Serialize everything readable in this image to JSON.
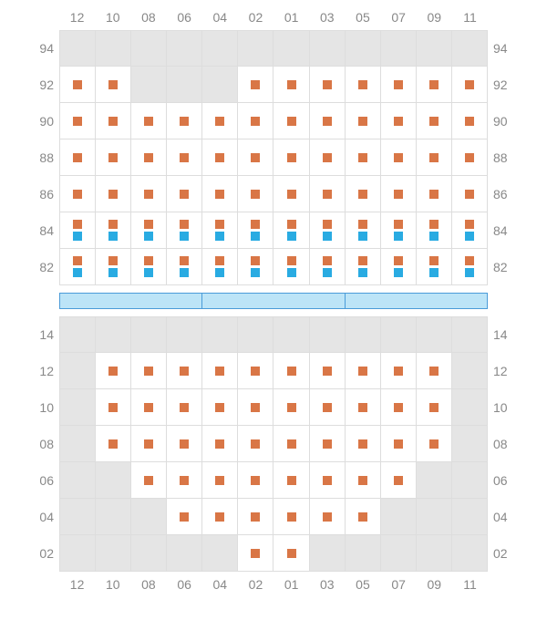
{
  "chart": {
    "type": "seating-map",
    "colors": {
      "orange": "#d97646",
      "blue": "#29abe2",
      "cell_bg": "#ffffff",
      "empty_bg": "#e5e5e5",
      "border": "#dddddd",
      "label": "#888888",
      "stage_fill": "#bce4f7",
      "stage_border": "#4a9bd8"
    },
    "columns": [
      "12",
      "10",
      "08",
      "06",
      "04",
      "02",
      "01",
      "03",
      "05",
      "07",
      "09",
      "11"
    ],
    "upper": {
      "row_labels": [
        "94",
        "92",
        "90",
        "88",
        "86",
        "84",
        "82"
      ],
      "rows": [
        {
          "label": "94",
          "cells": [
            {
              "t": "e"
            },
            {
              "t": "e"
            },
            {
              "t": "e"
            },
            {
              "t": "e"
            },
            {
              "t": "e"
            },
            {
              "t": "e"
            },
            {
              "t": "e"
            },
            {
              "t": "e"
            },
            {
              "t": "e"
            },
            {
              "t": "e"
            },
            {
              "t": "e"
            },
            {
              "t": "e"
            }
          ]
        },
        {
          "label": "92",
          "cells": [
            {
              "t": "o"
            },
            {
              "t": "o"
            },
            {
              "t": "e"
            },
            {
              "t": "e"
            },
            {
              "t": "e"
            },
            {
              "t": "o"
            },
            {
              "t": "o"
            },
            {
              "t": "o"
            },
            {
              "t": "o"
            },
            {
              "t": "o"
            },
            {
              "t": "o"
            },
            {
              "t": "o"
            }
          ]
        },
        {
          "label": "90",
          "cells": [
            {
              "t": "o"
            },
            {
              "t": "o"
            },
            {
              "t": "o"
            },
            {
              "t": "o"
            },
            {
              "t": "o"
            },
            {
              "t": "o"
            },
            {
              "t": "o"
            },
            {
              "t": "o"
            },
            {
              "t": "o"
            },
            {
              "t": "o"
            },
            {
              "t": "o"
            },
            {
              "t": "o"
            }
          ]
        },
        {
          "label": "88",
          "cells": [
            {
              "t": "o"
            },
            {
              "t": "o"
            },
            {
              "t": "o"
            },
            {
              "t": "o"
            },
            {
              "t": "o"
            },
            {
              "t": "o"
            },
            {
              "t": "o"
            },
            {
              "t": "o"
            },
            {
              "t": "o"
            },
            {
              "t": "o"
            },
            {
              "t": "o"
            },
            {
              "t": "o"
            }
          ]
        },
        {
          "label": "86",
          "cells": [
            {
              "t": "o"
            },
            {
              "t": "o"
            },
            {
              "t": "o"
            },
            {
              "t": "o"
            },
            {
              "t": "o"
            },
            {
              "t": "o"
            },
            {
              "t": "o"
            },
            {
              "t": "o"
            },
            {
              "t": "o"
            },
            {
              "t": "o"
            },
            {
              "t": "o"
            },
            {
              "t": "o"
            }
          ]
        },
        {
          "label": "84",
          "cells": [
            {
              "t": "ob"
            },
            {
              "t": "ob"
            },
            {
              "t": "ob"
            },
            {
              "t": "ob"
            },
            {
              "t": "ob"
            },
            {
              "t": "ob"
            },
            {
              "t": "ob"
            },
            {
              "t": "ob"
            },
            {
              "t": "ob"
            },
            {
              "t": "ob"
            },
            {
              "t": "ob"
            },
            {
              "t": "ob"
            }
          ]
        },
        {
          "label": "82",
          "cells": [
            {
              "t": "ob"
            },
            {
              "t": "ob"
            },
            {
              "t": "ob"
            },
            {
              "t": "ob"
            },
            {
              "t": "ob"
            },
            {
              "t": "ob"
            },
            {
              "t": "ob"
            },
            {
              "t": "ob"
            },
            {
              "t": "ob"
            },
            {
              "t": "ob"
            },
            {
              "t": "ob"
            },
            {
              "t": "ob"
            }
          ]
        }
      ]
    },
    "stage_segments": 3,
    "lower": {
      "row_labels": [
        "14",
        "12",
        "10",
        "08",
        "06",
        "04",
        "02"
      ],
      "rows": [
        {
          "label": "14",
          "cells": [
            {
              "t": "e"
            },
            {
              "t": "e"
            },
            {
              "t": "e"
            },
            {
              "t": "e"
            },
            {
              "t": "e"
            },
            {
              "t": "e"
            },
            {
              "t": "e"
            },
            {
              "t": "e"
            },
            {
              "t": "e"
            },
            {
              "t": "e"
            },
            {
              "t": "e"
            },
            {
              "t": "e"
            }
          ]
        },
        {
          "label": "12",
          "cells": [
            {
              "t": "e"
            },
            {
              "t": "o"
            },
            {
              "t": "o"
            },
            {
              "t": "o"
            },
            {
              "t": "o"
            },
            {
              "t": "o"
            },
            {
              "t": "o"
            },
            {
              "t": "o"
            },
            {
              "t": "o"
            },
            {
              "t": "o"
            },
            {
              "t": "o"
            },
            {
              "t": "e"
            }
          ]
        },
        {
          "label": "10",
          "cells": [
            {
              "t": "e"
            },
            {
              "t": "o"
            },
            {
              "t": "o"
            },
            {
              "t": "o"
            },
            {
              "t": "o"
            },
            {
              "t": "o"
            },
            {
              "t": "o"
            },
            {
              "t": "o"
            },
            {
              "t": "o"
            },
            {
              "t": "o"
            },
            {
              "t": "o"
            },
            {
              "t": "e"
            }
          ]
        },
        {
          "label": "08",
          "cells": [
            {
              "t": "e"
            },
            {
              "t": "o"
            },
            {
              "t": "o"
            },
            {
              "t": "o"
            },
            {
              "t": "o"
            },
            {
              "t": "o"
            },
            {
              "t": "o"
            },
            {
              "t": "o"
            },
            {
              "t": "o"
            },
            {
              "t": "o"
            },
            {
              "t": "o"
            },
            {
              "t": "e"
            }
          ]
        },
        {
          "label": "06",
          "cells": [
            {
              "t": "e"
            },
            {
              "t": "e"
            },
            {
              "t": "o"
            },
            {
              "t": "o"
            },
            {
              "t": "o"
            },
            {
              "t": "o"
            },
            {
              "t": "o"
            },
            {
              "t": "o"
            },
            {
              "t": "o"
            },
            {
              "t": "o"
            },
            {
              "t": "e"
            },
            {
              "t": "e"
            }
          ]
        },
        {
          "label": "04",
          "cells": [
            {
              "t": "e"
            },
            {
              "t": "e"
            },
            {
              "t": "e"
            },
            {
              "t": "o"
            },
            {
              "t": "o"
            },
            {
              "t": "o"
            },
            {
              "t": "o"
            },
            {
              "t": "o"
            },
            {
              "t": "o"
            },
            {
              "t": "e"
            },
            {
              "t": "e"
            },
            {
              "t": "e"
            }
          ]
        },
        {
          "label": "02",
          "cells": [
            {
              "t": "e"
            },
            {
              "t": "e"
            },
            {
              "t": "e"
            },
            {
              "t": "e"
            },
            {
              "t": "e"
            },
            {
              "t": "o"
            },
            {
              "t": "o"
            },
            {
              "t": "e"
            },
            {
              "t": "e"
            },
            {
              "t": "e"
            },
            {
              "t": "e"
            },
            {
              "t": "e"
            }
          ]
        }
      ]
    }
  }
}
